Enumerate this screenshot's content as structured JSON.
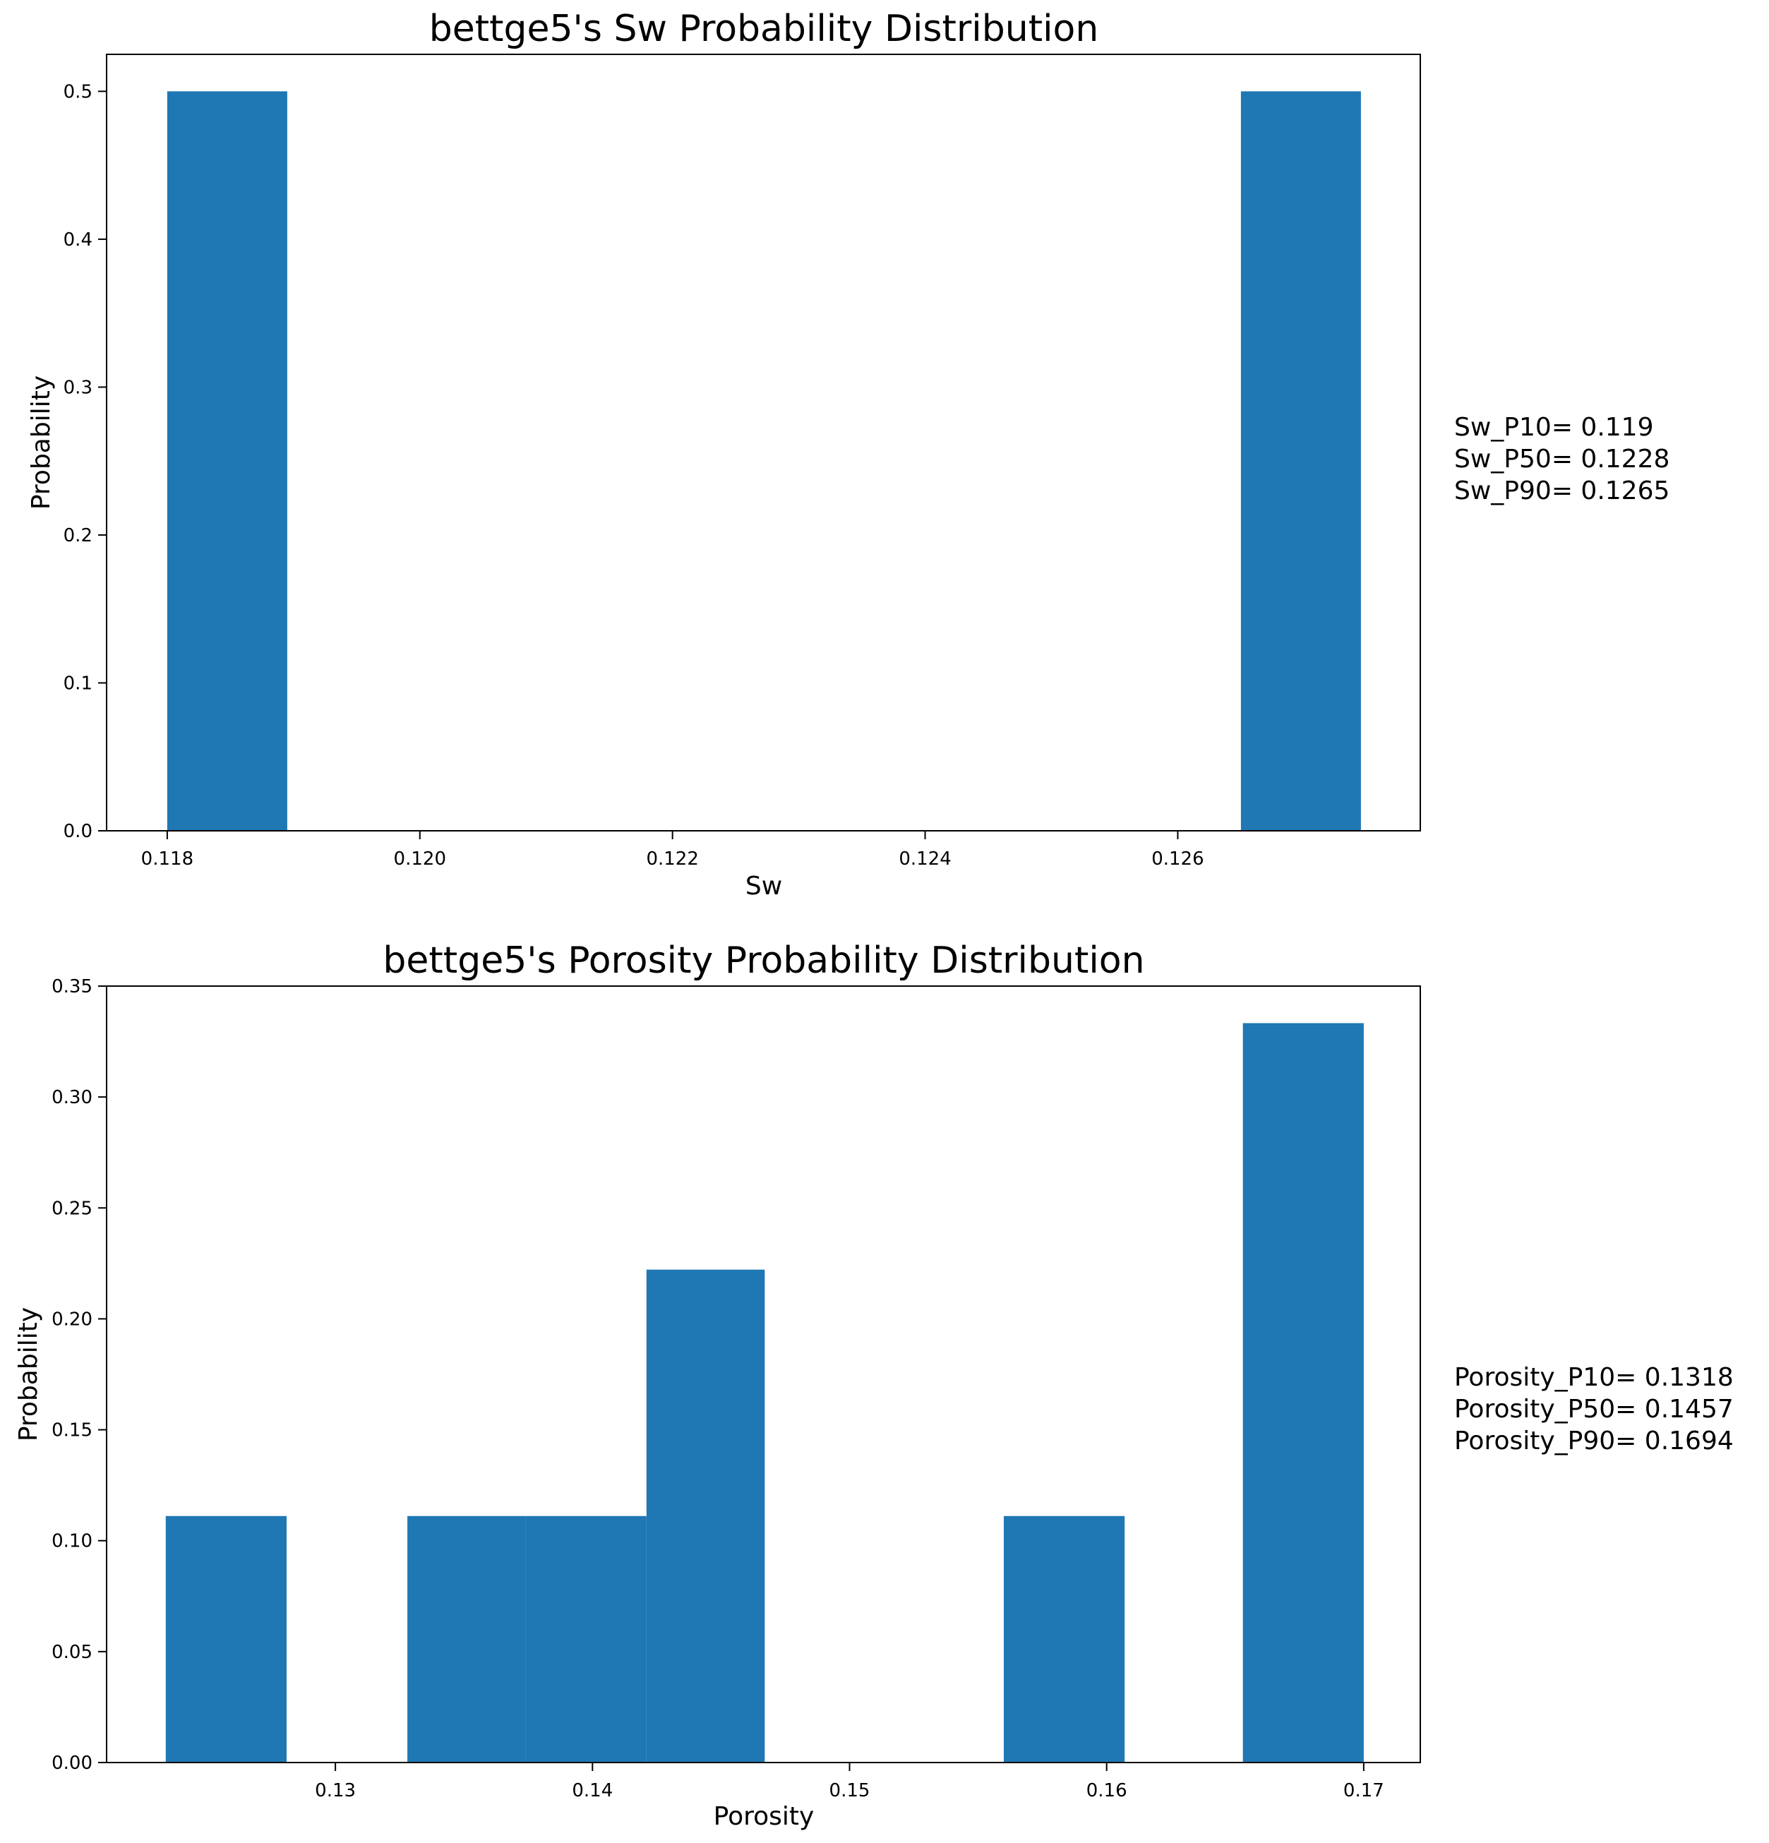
{
  "chart_data": [
    {
      "type": "bar",
      "title": "bettge5's Sw Probability Distribution",
      "xlabel": "Sw",
      "ylabel": "Probability",
      "xlim": [
        0.11752,
        0.12792
      ],
      "ylim": [
        0,
        0.525
      ],
      "xticks": [
        0.118,
        0.12,
        0.122,
        0.124,
        0.126
      ],
      "xtick_labels": [
        "0.118",
        "0.120",
        "0.122",
        "0.124",
        "0.126"
      ],
      "yticks": [
        0,
        0.1,
        0.2,
        0.3,
        0.4,
        0.5
      ],
      "ytick_labels": [
        "0.0",
        "0.1",
        "0.2",
        "0.3",
        "0.4",
        "0.5"
      ],
      "bins": [
        {
          "x0": 0.118,
          "x1": 0.11895,
          "value": 0.5
        },
        {
          "x0": 0.1265,
          "x1": 0.12745,
          "value": 0.5
        }
      ],
      "grid": false,
      "color": "#1f77b4",
      "annotation_lines": [
        "Sw_P10= 0.119",
        "Sw_P50= 0.1228",
        "Sw_P90= 0.1265"
      ]
    },
    {
      "type": "bar",
      "title": "bettge5's Porosity Probability Distribution",
      "xlabel": "Porosity",
      "ylabel": "Probability",
      "xlim": [
        0.1211,
        0.1722
      ],
      "ylim": [
        0,
        0.35
      ],
      "xticks": [
        0.13,
        0.14,
        0.15,
        0.16,
        0.17
      ],
      "xtick_labels": [
        "0.13",
        "0.14",
        "0.15",
        "0.16",
        "0.17"
      ],
      "yticks": [
        0,
        0.05,
        0.1,
        0.15,
        0.2,
        0.25,
        0.3,
        0.35
      ],
      "ytick_labels": [
        "0.00",
        "0.05",
        "0.10",
        "0.15",
        "0.20",
        "0.25",
        "0.30",
        "0.35"
      ],
      "bins": [
        {
          "x0": 0.1234,
          "x1": 0.1281,
          "value": 0.1111
        },
        {
          "x0": 0.1328,
          "x1": 0.1374,
          "value": 0.1111
        },
        {
          "x0": 0.1374,
          "x1": 0.1421,
          "value": 0.1111
        },
        {
          "x0": 0.1421,
          "x1": 0.1467,
          "value": 0.2222
        },
        {
          "x0": 0.156,
          "x1": 0.1607,
          "value": 0.1111
        },
        {
          "x0": 0.1653,
          "x1": 0.17,
          "value": 0.3333
        }
      ],
      "grid": false,
      "color": "#1f77b4",
      "annotation_lines": [
        "Porosity_P10= 0.1318",
        "Porosity_P50= 0.1457",
        "Porosity_P90= 0.1694"
      ]
    }
  ]
}
